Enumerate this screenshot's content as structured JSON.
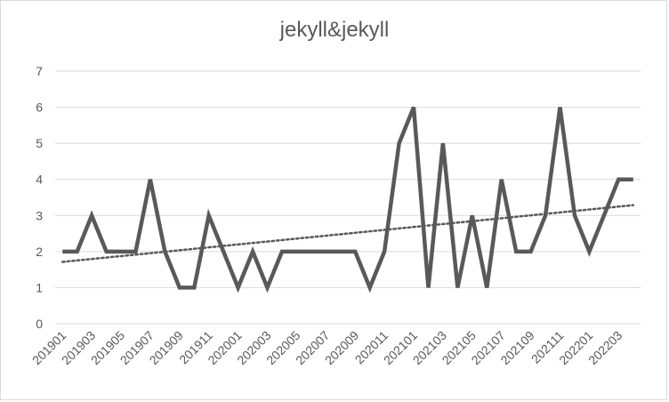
{
  "chart_data": {
    "type": "line",
    "title": "jekyll&jekyll",
    "xlabel": "",
    "ylabel": "",
    "ylim": [
      0,
      7
    ],
    "yticks": [
      0,
      1,
      2,
      3,
      4,
      5,
      6,
      7
    ],
    "grid": "horizontal",
    "x": [
      "201901",
      "201902",
      "201903",
      "201904",
      "201905",
      "201906",
      "201907",
      "201908",
      "201909",
      "201910",
      "201911",
      "201912",
      "202001",
      "202002",
      "202003",
      "202004",
      "202005",
      "202006",
      "202007",
      "202008",
      "202009",
      "202010",
      "202011",
      "202012",
      "202101",
      "202102",
      "202103",
      "202104",
      "202105",
      "202106",
      "202107",
      "202108",
      "202109",
      "202110",
      "202111",
      "202112",
      "202201",
      "202202",
      "202203",
      "202204"
    ],
    "xtick_labels": [
      "201901",
      "201903",
      "201905",
      "201907",
      "201909",
      "201911",
      "202001",
      "202003",
      "202005",
      "202007",
      "202009",
      "202011",
      "202101",
      "202103",
      "202105",
      "202107",
      "202109",
      "202111",
      "202201",
      "202203"
    ],
    "series": [
      {
        "values": [
          2,
          2,
          3,
          2,
          2,
          2,
          4,
          2,
          1,
          1,
          3,
          2,
          1,
          2,
          1,
          2,
          2,
          2,
          2,
          2,
          2,
          1,
          2,
          5,
          6,
          1,
          5,
          1,
          3,
          1,
          4,
          2,
          2,
          3,
          6,
          3,
          2,
          3,
          4,
          4
        ],
        "color": "#595959"
      }
    ],
    "trendline": {
      "type": "linear",
      "style": "dotted",
      "color": "#595959"
    }
  }
}
